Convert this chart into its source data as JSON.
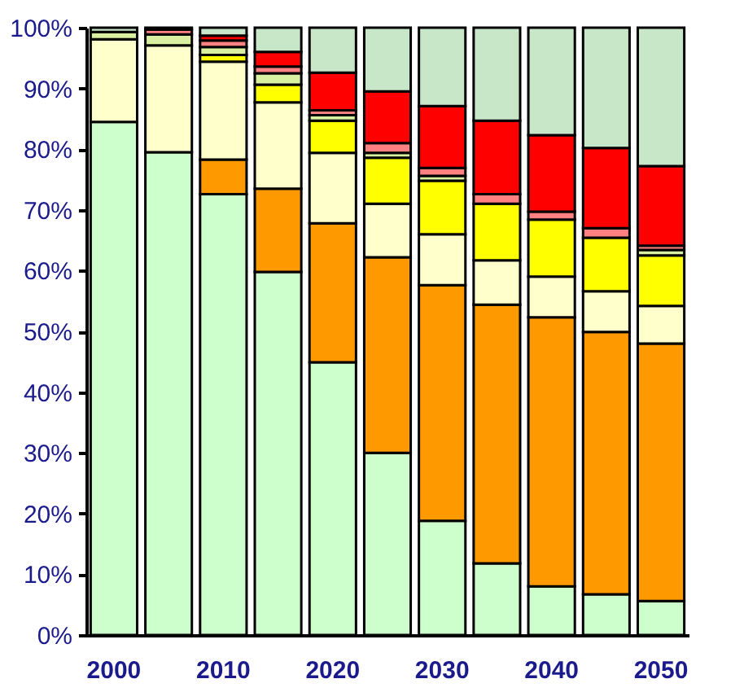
{
  "chart_data": {
    "type": "bar",
    "stacked": true,
    "categories": [
      "2000",
      null,
      "2010",
      null,
      "2020",
      null,
      "2030",
      null,
      "2040",
      null,
      "2050"
    ],
    "series": [
      {
        "color": "#ccffcc",
        "values": [
          84.5,
          79.5,
          72.6,
          59.8,
          44.9,
          30.0,
          18.8,
          11.8,
          8.0,
          6.7,
          5.6
        ]
      },
      {
        "color": "#ff9900",
        "values": [
          0,
          0,
          5.7,
          13.7,
          22.9,
          32.2,
          38.8,
          42.6,
          44.3,
          43.2,
          42.4
        ]
      },
      {
        "color": "#ffffcc",
        "values": [
          13.6,
          17.6,
          16.1,
          14.2,
          11.6,
          8.8,
          8.4,
          7.3,
          6.7,
          6.7,
          6.2
        ]
      },
      {
        "color": "#ffff00",
        "values": [
          0,
          0,
          1.1,
          2.9,
          5.3,
          7.6,
          8.8,
          9.3,
          9.4,
          8.8,
          8.3
        ]
      },
      {
        "color": "#d9f0a0",
        "values": [
          1.2,
          1.8,
          1.3,
          1.9,
          0.9,
          0.8,
          0.8,
          0,
          0,
          0,
          0.9
        ]
      },
      {
        "color": "#ff8080",
        "values": [
          0,
          0.8,
          1.1,
          1.1,
          0.8,
          1.6,
          1.3,
          1.6,
          1.3,
          1.6,
          0.7
        ]
      },
      {
        "color": "#ff0000",
        "values": [
          0,
          0,
          0.8,
          2.4,
          6.2,
          8.5,
          10.2,
          12.1,
          12.6,
          13.2,
          13.1
        ]
      },
      {
        "color": "#c8e6c8",
        "values": [
          0.7,
          0.3,
          1.3,
          4.0,
          7.4,
          10.5,
          12.9,
          15.3,
          17.7,
          19.8,
          22.8
        ]
      }
    ],
    "ylim": [
      0,
      100
    ],
    "yticks": [
      {
        "value": 0,
        "label": "0%"
      },
      {
        "value": 10,
        "label": "10%"
      },
      {
        "value": 20,
        "label": "20%"
      },
      {
        "value": 30,
        "label": "30%"
      },
      {
        "value": 40,
        "label": "40%"
      },
      {
        "value": 50,
        "label": "50%"
      },
      {
        "value": 60,
        "label": "60%"
      },
      {
        "value": 70,
        "label": "70%"
      },
      {
        "value": 80,
        "label": "80%"
      },
      {
        "value": 90,
        "label": "90%"
      },
      {
        "value": 100,
        "label": "100%"
      }
    ],
    "grid": false,
    "legend": false
  }
}
